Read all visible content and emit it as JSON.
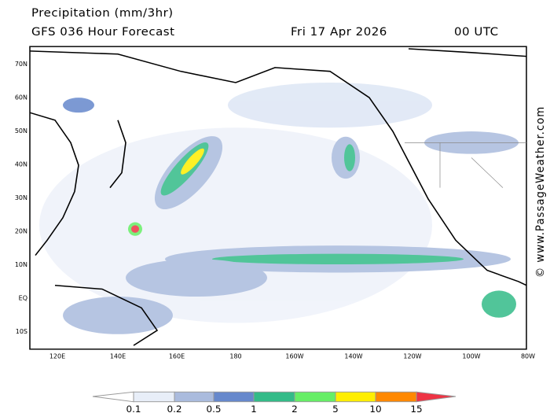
{
  "header": {
    "title": "Precipitation (mm/3hr)",
    "model": "GFS 036 Hour Forecast",
    "date": "Fri 17 Apr 2026",
    "time": "00 UTC"
  },
  "map": {
    "lat_labels": [
      "70N",
      "60N",
      "50N",
      "40N",
      "30N",
      "20N",
      "10N",
      "EQ",
      "10S"
    ],
    "lon_labels": [
      "120E",
      "140E",
      "160E",
      "180",
      "160W",
      "140W",
      "120W",
      "100W",
      "80W"
    ]
  },
  "legend": {
    "labels": [
      "0.1",
      "0.2",
      "0.5",
      "1",
      "2",
      "5",
      "10",
      "15"
    ]
  },
  "watermark": "© www.PassageWeather.com"
}
